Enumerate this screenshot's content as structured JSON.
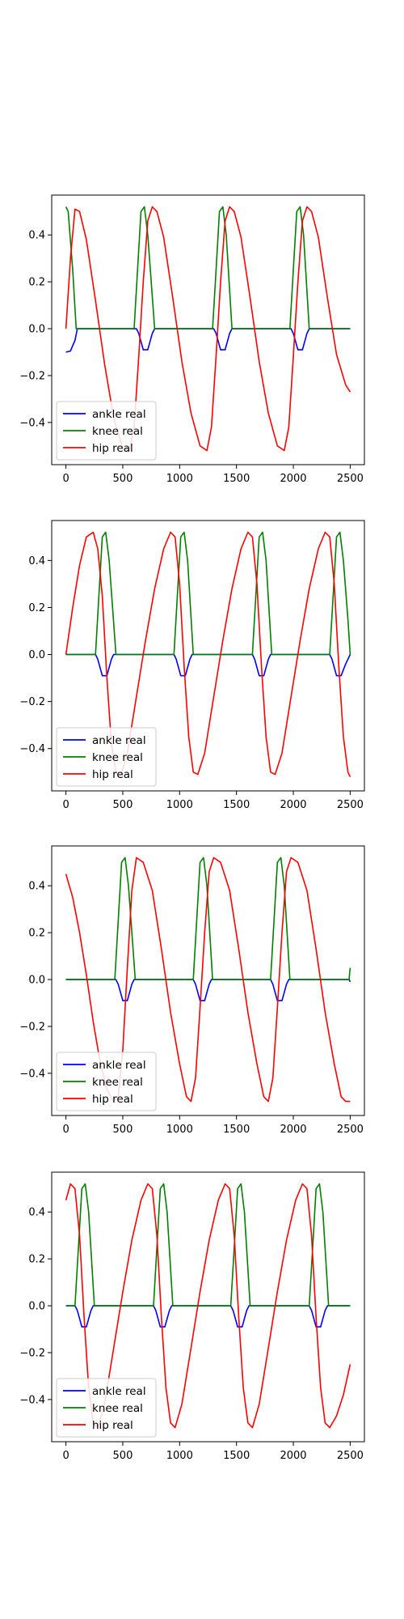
{
  "chart_data": [
    {
      "type": "line",
      "xlim": [
        -125,
        2625
      ],
      "ylim": [
        -0.58,
        0.57
      ],
      "xticks": [
        0,
        500,
        1000,
        1500,
        2000,
        2500
      ],
      "yticks": [
        -0.4,
        -0.2,
        0.0,
        0.2,
        0.4
      ],
      "xtick_labels": [
        "0",
        "500",
        "1000",
        "1500",
        "2000",
        "2500"
      ],
      "ytick_labels": [
        "−0.4",
        "−0.2",
        "0.0",
        "0.2",
        "0.4"
      ],
      "legend_position": "lower-left",
      "grid": false,
      "series": [
        {
          "name": "ankle real",
          "color": "#0000ff",
          "x": [
            0,
            40,
            80,
            100,
            620,
            640,
            680,
            720,
            760,
            780,
            1300,
            1320,
            1360,
            1400,
            1440,
            1460,
            1980,
            2000,
            2040,
            2080,
            2120,
            2140,
            2500
          ],
          "y": [
            -0.1,
            -0.095,
            -0.05,
            0.0,
            0.0,
            -0.02,
            -0.09,
            -0.09,
            -0.02,
            0.0,
            0.0,
            -0.02,
            -0.09,
            -0.09,
            -0.02,
            0.0,
            0.0,
            -0.02,
            -0.09,
            -0.09,
            -0.02,
            0.0,
            0.0
          ]
        },
        {
          "name": "knee real",
          "color": "#008000",
          "x": [
            0,
            20,
            60,
            90,
            600,
            630,
            660,
            690,
            720,
            780,
            1290,
            1320,
            1350,
            1380,
            1410,
            1460,
            1970,
            2000,
            2030,
            2060,
            2090,
            2140,
            2500
          ],
          "y": [
            0.52,
            0.5,
            0.25,
            0.0,
            0.0,
            0.25,
            0.5,
            0.52,
            0.4,
            0.0,
            0.0,
            0.25,
            0.5,
            0.52,
            0.4,
            0.0,
            0.0,
            0.25,
            0.5,
            0.52,
            0.4,
            0.0,
            0.0
          ]
        },
        {
          "name": "hip real",
          "color": "#ff0000",
          "x": [
            0,
            40,
            80,
            120,
            180,
            260,
            340,
            420,
            500,
            560,
            600,
            640,
            680,
            720,
            760,
            800,
            860,
            940,
            1020,
            1100,
            1180,
            1240,
            1280,
            1320,
            1360,
            1400,
            1440,
            1480,
            1540,
            1620,
            1700,
            1780,
            1860,
            1920,
            1960,
            2000,
            2040,
            2080,
            2120,
            2160,
            2220,
            2300,
            2380,
            2460,
            2500
          ],
          "y": [
            0.0,
            0.3,
            0.51,
            0.5,
            0.38,
            0.12,
            -0.15,
            -0.38,
            -0.51,
            -0.52,
            -0.42,
            -0.12,
            0.2,
            0.46,
            0.52,
            0.5,
            0.39,
            0.13,
            -0.14,
            -0.36,
            -0.5,
            -0.52,
            -0.42,
            -0.12,
            0.2,
            0.46,
            0.52,
            0.5,
            0.39,
            0.13,
            -0.14,
            -0.36,
            -0.5,
            -0.52,
            -0.42,
            -0.12,
            0.2,
            0.46,
            0.52,
            0.5,
            0.39,
            0.13,
            -0.11,
            -0.24,
            -0.27
          ]
        }
      ]
    },
    {
      "type": "line",
      "xlim": [
        -125,
        2625
      ],
      "ylim": [
        -0.58,
        0.57
      ],
      "xticks": [
        0,
        500,
        1000,
        1500,
        2000,
        2500
      ],
      "yticks": [
        -0.4,
        -0.2,
        0.0,
        0.2,
        0.4
      ],
      "xtick_labels": [
        "0",
        "500",
        "1000",
        "1500",
        "2000",
        "2500"
      ],
      "ytick_labels": [
        "−0.4",
        "−0.2",
        "0.0",
        "0.2",
        "0.4"
      ],
      "legend_position": "lower-left",
      "grid": false,
      "series": [
        {
          "name": "ankle real",
          "color": "#0000ff",
          "x": [
            0,
            260,
            280,
            320,
            360,
            400,
            420,
            950,
            970,
            1010,
            1050,
            1090,
            1110,
            1640,
            1660,
            1700,
            1740,
            1780,
            1800,
            2320,
            2340,
            2380,
            2420,
            2460,
            2480,
            2500
          ],
          "y": [
            0.0,
            0.0,
            -0.02,
            -0.09,
            -0.09,
            -0.02,
            0.0,
            0.0,
            -0.02,
            -0.09,
            -0.09,
            -0.02,
            0.0,
            0.0,
            -0.02,
            -0.09,
            -0.09,
            -0.02,
            0.0,
            0.0,
            -0.02,
            -0.09,
            -0.09,
            -0.04,
            -0.02,
            0.0
          ]
        },
        {
          "name": "knee real",
          "color": "#008000",
          "x": [
            0,
            260,
            290,
            320,
            350,
            380,
            440,
            950,
            980,
            1010,
            1040,
            1070,
            1120,
            1640,
            1670,
            1700,
            1730,
            1760,
            1810,
            2320,
            2350,
            2380,
            2410,
            2440,
            2480,
            2500
          ],
          "y": [
            0.0,
            0.0,
            0.25,
            0.5,
            0.52,
            0.4,
            0.0,
            0.0,
            0.25,
            0.5,
            0.52,
            0.4,
            0.0,
            0.0,
            0.25,
            0.5,
            0.52,
            0.4,
            0.0,
            0.0,
            0.25,
            0.5,
            0.52,
            0.4,
            0.15,
            0.0
          ]
        },
        {
          "name": "hip real",
          "color": "#ff0000",
          "x": [
            0,
            60,
            120,
            180,
            240,
            280,
            320,
            360,
            400,
            440,
            480,
            540,
            620,
            700,
            780,
            860,
            920,
            960,
            1000,
            1040,
            1080,
            1120,
            1160,
            1220,
            1300,
            1380,
            1460,
            1540,
            1600,
            1640,
            1680,
            1720,
            1760,
            1800,
            1840,
            1900,
            1980,
            2060,
            2140,
            2220,
            2280,
            2320,
            2360,
            2400,
            2440,
            2480,
            2500
          ],
          "y": [
            0.0,
            0.2,
            0.38,
            0.5,
            0.52,
            0.45,
            0.25,
            -0.1,
            -0.38,
            -0.5,
            -0.52,
            -0.42,
            -0.18,
            0.06,
            0.28,
            0.45,
            0.52,
            0.5,
            0.3,
            -0.05,
            -0.35,
            -0.5,
            -0.51,
            -0.42,
            -0.18,
            0.06,
            0.28,
            0.45,
            0.52,
            0.5,
            0.3,
            -0.05,
            -0.35,
            -0.5,
            -0.51,
            -0.42,
            -0.18,
            0.06,
            0.28,
            0.45,
            0.52,
            0.5,
            0.3,
            -0.05,
            -0.35,
            -0.5,
            -0.52
          ]
        }
      ]
    },
    {
      "type": "line",
      "xlim": [
        -125,
        2625
      ],
      "ylim": [
        -0.58,
        0.57
      ],
      "xticks": [
        0,
        500,
        1000,
        1500,
        2000,
        2500
      ],
      "yticks": [
        -0.4,
        -0.2,
        0.0,
        0.2,
        0.4
      ],
      "xtick_labels": [
        "0",
        "500",
        "1000",
        "1500",
        "2000",
        "2500"
      ],
      "ytick_labels": [
        "−0.4",
        "−0.2",
        "0.0",
        "0.2",
        "0.4"
      ],
      "legend_position": "lower-left",
      "grid": false,
      "series": [
        {
          "name": "ankle real",
          "color": "#0000ff",
          "x": [
            0,
            440,
            460,
            500,
            540,
            580,
            600,
            1120,
            1140,
            1180,
            1220,
            1260,
            1280,
            1800,
            1820,
            1860,
            1900,
            1940,
            1960,
            2490,
            2500
          ],
          "y": [
            0.0,
            0.0,
            -0.02,
            -0.09,
            -0.09,
            -0.02,
            0.0,
            0.0,
            -0.02,
            -0.09,
            -0.09,
            -0.02,
            0.0,
            0.0,
            -0.02,
            -0.09,
            -0.09,
            -0.02,
            0.0,
            0.0,
            -0.01
          ]
        },
        {
          "name": "knee real",
          "color": "#008000",
          "x": [
            0,
            430,
            460,
            490,
            520,
            550,
            610,
            1120,
            1150,
            1180,
            1210,
            1240,
            1290,
            1800,
            1830,
            1860,
            1890,
            1920,
            1970,
            2490,
            2500
          ],
          "y": [
            0.0,
            0.0,
            0.25,
            0.5,
            0.52,
            0.4,
            0.0,
            0.0,
            0.25,
            0.5,
            0.52,
            0.4,
            0.0,
            0.0,
            0.25,
            0.5,
            0.52,
            0.4,
            0.0,
            0.0,
            0.05
          ]
        },
        {
          "name": "hip real",
          "color": "#ff0000",
          "x": [
            0,
            60,
            120,
            180,
            240,
            300,
            360,
            420,
            460,
            500,
            540,
            580,
            620,
            680,
            760,
            840,
            920,
            1000,
            1060,
            1100,
            1140,
            1180,
            1220,
            1260,
            1300,
            1360,
            1440,
            1520,
            1600,
            1680,
            1740,
            1780,
            1820,
            1860,
            1900,
            1940,
            1980,
            2040,
            2120,
            2200,
            2280,
            2360,
            2420,
            2460,
            2500
          ],
          "y": [
            0.45,
            0.35,
            0.2,
            0.02,
            -0.18,
            -0.35,
            -0.47,
            -0.52,
            -0.5,
            -0.3,
            0.05,
            0.38,
            0.52,
            0.5,
            0.38,
            0.13,
            -0.14,
            -0.36,
            -0.5,
            -0.52,
            -0.42,
            -0.12,
            0.2,
            0.46,
            0.52,
            0.5,
            0.38,
            0.13,
            -0.14,
            -0.36,
            -0.5,
            -0.52,
            -0.42,
            -0.12,
            0.2,
            0.46,
            0.52,
            0.5,
            0.38,
            0.13,
            -0.14,
            -0.36,
            -0.5,
            -0.52,
            -0.52
          ]
        }
      ]
    },
    {
      "type": "line",
      "xlim": [
        -125,
        2625
      ],
      "ylim": [
        -0.58,
        0.57
      ],
      "xticks": [
        0,
        500,
        1000,
        1500,
        2000,
        2500
      ],
      "yticks": [
        -0.4,
        -0.2,
        0.0,
        0.2,
        0.4
      ],
      "xtick_labels": [
        "0",
        "500",
        "1000",
        "1500",
        "2000",
        "2500"
      ],
      "ytick_labels": [
        "−0.4",
        "−0.2",
        "0.0",
        "0.2",
        "0.4"
      ],
      "legend_position": "lower-left",
      "grid": false,
      "series": [
        {
          "name": "ankle real",
          "color": "#0000ff",
          "x": [
            0,
            80,
            100,
            140,
            180,
            220,
            240,
            770,
            790,
            830,
            870,
            910,
            930,
            1450,
            1470,
            1510,
            1550,
            1590,
            1610,
            2140,
            2160,
            2200,
            2240,
            2280,
            2300,
            2500
          ],
          "y": [
            0.0,
            0.0,
            -0.02,
            -0.09,
            -0.09,
            -0.02,
            0.0,
            0.0,
            -0.02,
            -0.09,
            -0.09,
            -0.02,
            0.0,
            0.0,
            -0.02,
            -0.09,
            -0.09,
            -0.02,
            0.0,
            0.0,
            -0.02,
            -0.09,
            -0.09,
            -0.02,
            0.0,
            0.0
          ]
        },
        {
          "name": "knee real",
          "color": "#008000",
          "x": [
            0,
            80,
            110,
            140,
            170,
            200,
            250,
            770,
            800,
            830,
            860,
            890,
            940,
            1450,
            1480,
            1510,
            1540,
            1570,
            1620,
            2140,
            2170,
            2200,
            2230,
            2260,
            2310,
            2500
          ],
          "y": [
            0.0,
            0.0,
            0.25,
            0.5,
            0.52,
            0.4,
            0.0,
            0.0,
            0.25,
            0.5,
            0.52,
            0.4,
            0.0,
            0.0,
            0.25,
            0.5,
            0.52,
            0.4,
            0.0,
            0.0,
            0.25,
            0.5,
            0.52,
            0.4,
            0.0,
            0.0
          ]
        },
        {
          "name": "hip real",
          "color": "#ff0000",
          "x": [
            0,
            40,
            80,
            120,
            160,
            200,
            240,
            280,
            340,
            420,
            500,
            580,
            660,
            720,
            760,
            800,
            840,
            880,
            920,
            960,
            1020,
            1100,
            1180,
            1260,
            1340,
            1400,
            1440,
            1480,
            1520,
            1560,
            1600,
            1640,
            1700,
            1780,
            1860,
            1940,
            2020,
            2080,
            2120,
            2160,
            2200,
            2240,
            2280,
            2320,
            2380,
            2440,
            2500
          ],
          "y": [
            0.45,
            0.52,
            0.5,
            0.3,
            -0.05,
            -0.35,
            -0.5,
            -0.52,
            -0.42,
            -0.18,
            0.06,
            0.28,
            0.45,
            0.52,
            0.5,
            0.3,
            -0.05,
            -0.35,
            -0.5,
            -0.52,
            -0.42,
            -0.18,
            0.06,
            0.28,
            0.45,
            0.52,
            0.5,
            0.3,
            -0.05,
            -0.35,
            -0.5,
            -0.52,
            -0.42,
            -0.18,
            0.06,
            0.28,
            0.45,
            0.52,
            0.5,
            0.3,
            -0.05,
            -0.35,
            -0.5,
            -0.52,
            -0.47,
            -0.38,
            -0.25
          ]
        }
      ]
    }
  ]
}
